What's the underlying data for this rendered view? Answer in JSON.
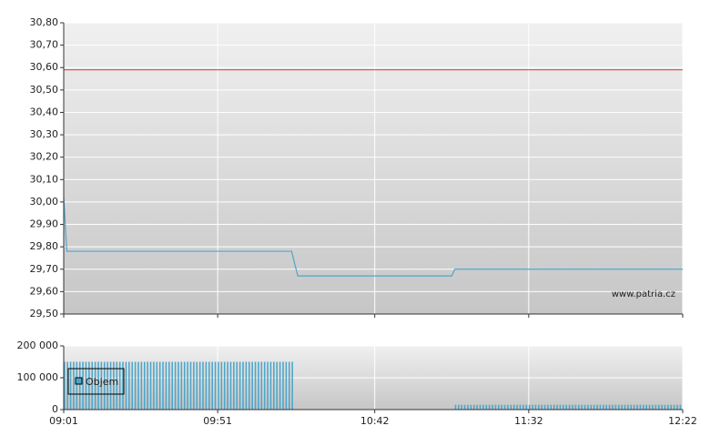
{
  "chart_data": [
    {
      "type": "line",
      "x": [
        541,
        542,
        615,
        617,
        667,
        668,
        742
      ],
      "values": [
        30.02,
        29.78,
        29.78,
        29.67,
        29.67,
        29.7,
        29.7
      ],
      "color": "#4ea6c9",
      "xlim": [
        541,
        742
      ],
      "ylim": [
        29.5,
        30.8
      ],
      "yticks": [
        {
          "value": 29.5,
          "label": "29,50"
        },
        {
          "value": 29.6,
          "label": "29,60"
        },
        {
          "value": 29.7,
          "label": "29,70"
        },
        {
          "value": 29.8,
          "label": "29,80"
        },
        {
          "value": 29.9,
          "label": "29,90"
        },
        {
          "value": 30.0,
          "label": "30,00"
        },
        {
          "value": 30.1,
          "label": "30,10"
        },
        {
          "value": 30.2,
          "label": "30,20"
        },
        {
          "value": 30.3,
          "label": "30,30"
        },
        {
          "value": 30.4,
          "label": "30,40"
        },
        {
          "value": 30.5,
          "label": "30,50"
        },
        {
          "value": 30.6,
          "label": "30,60"
        },
        {
          "value": 30.7,
          "label": "30,70"
        },
        {
          "value": 30.8,
          "label": "30,80"
        }
      ],
      "reference_line": {
        "value": 30.59,
        "color": "#e8463c"
      },
      "annotation": "www.patria.cz",
      "grid": true
    },
    {
      "type": "bar",
      "xlim": [
        541,
        742
      ],
      "xticks": [
        {
          "value": 541,
          "label": "09:01"
        },
        {
          "value": 591,
          "label": "09:51"
        },
        {
          "value": 642,
          "label": "10:42"
        },
        {
          "value": 692,
          "label": "11:32"
        },
        {
          "value": 742,
          "label": "12:22"
        }
      ],
      "ylim": [
        0,
        200000
      ],
      "yticks": [
        0,
        {
          "value": 100000,
          "label": "100 000"
        },
        {
          "value": 200000,
          "label": "200 000"
        }
      ],
      "legend": "upper left",
      "grid": true,
      "series": [
        {
          "name": "Objem",
          "color": "#4ea6c9",
          "x": [
            541,
            542,
            543,
            544,
            545,
            546,
            547,
            548,
            549,
            550,
            551,
            552,
            553,
            554,
            555,
            556,
            557,
            558,
            559,
            560,
            561,
            562,
            563,
            564,
            565,
            566,
            567,
            568,
            569,
            570,
            571,
            572,
            573,
            574,
            575,
            576,
            577,
            578,
            579,
            580,
            581,
            582,
            583,
            584,
            585,
            586,
            587,
            588,
            589,
            590,
            591,
            592,
            593,
            594,
            595,
            596,
            597,
            598,
            599,
            600,
            601,
            602,
            603,
            604,
            605,
            606,
            607,
            608,
            609,
            610,
            611,
            612,
            613,
            614,
            615,
            668,
            669,
            670,
            671,
            672,
            673,
            674,
            675,
            676,
            677,
            678,
            679,
            680,
            681,
            682,
            683,
            684,
            685,
            686,
            687,
            688,
            689,
            690,
            691,
            692,
            693,
            694,
            695,
            696,
            697,
            698,
            699,
            700,
            701,
            702,
            703,
            704,
            705,
            706,
            707,
            708,
            709,
            710,
            711,
            712,
            713,
            714,
            715,
            716,
            717,
            718,
            719,
            720,
            721,
            722,
            723,
            724,
            725,
            726,
            727,
            728,
            729,
            730,
            731,
            732,
            733,
            734,
            735,
            736,
            737,
            738,
            739,
            740,
            741
          ],
          "values": [
            150000,
            150000,
            150000,
            150000,
            150000,
            150000,
            150000,
            150000,
            150000,
            150000,
            150000,
            150000,
            150000,
            150000,
            150000,
            150000,
            150000,
            150000,
            150000,
            150000,
            150000,
            150000,
            150000,
            150000,
            150000,
            150000,
            150000,
            150000,
            150000,
            150000,
            150000,
            150000,
            150000,
            150000,
            150000,
            150000,
            150000,
            150000,
            150000,
            150000,
            150000,
            150000,
            150000,
            150000,
            150000,
            150000,
            150000,
            150000,
            150000,
            150000,
            150000,
            150000,
            150000,
            150000,
            150000,
            150000,
            150000,
            150000,
            150000,
            150000,
            150000,
            150000,
            150000,
            150000,
            150000,
            150000,
            150000,
            150000,
            150000,
            150000,
            150000,
            150000,
            150000,
            150000,
            150000,
            15000,
            15000,
            15000,
            15000,
            15000,
            15000,
            15000,
            15000,
            15000,
            15000,
            15000,
            15000,
            15000,
            15000,
            15000,
            15000,
            15000,
            15000,
            15000,
            15000,
            15000,
            15000,
            15000,
            15000,
            15000,
            15000,
            15000,
            15000,
            15000,
            15000,
            15000,
            15000,
            15000,
            15000,
            15000,
            15000,
            15000,
            15000,
            15000,
            15000,
            15000,
            15000,
            15000,
            15000,
            15000,
            15000,
            15000,
            15000,
            15000,
            15000,
            15000,
            15000,
            15000,
            15000,
            15000,
            15000,
            15000,
            15000,
            15000,
            15000,
            15000,
            15000,
            15000,
            15000,
            15000,
            15000,
            15000,
            15000,
            15000,
            15000,
            15000,
            15000,
            15000,
            15000
          ]
        }
      ]
    }
  ]
}
